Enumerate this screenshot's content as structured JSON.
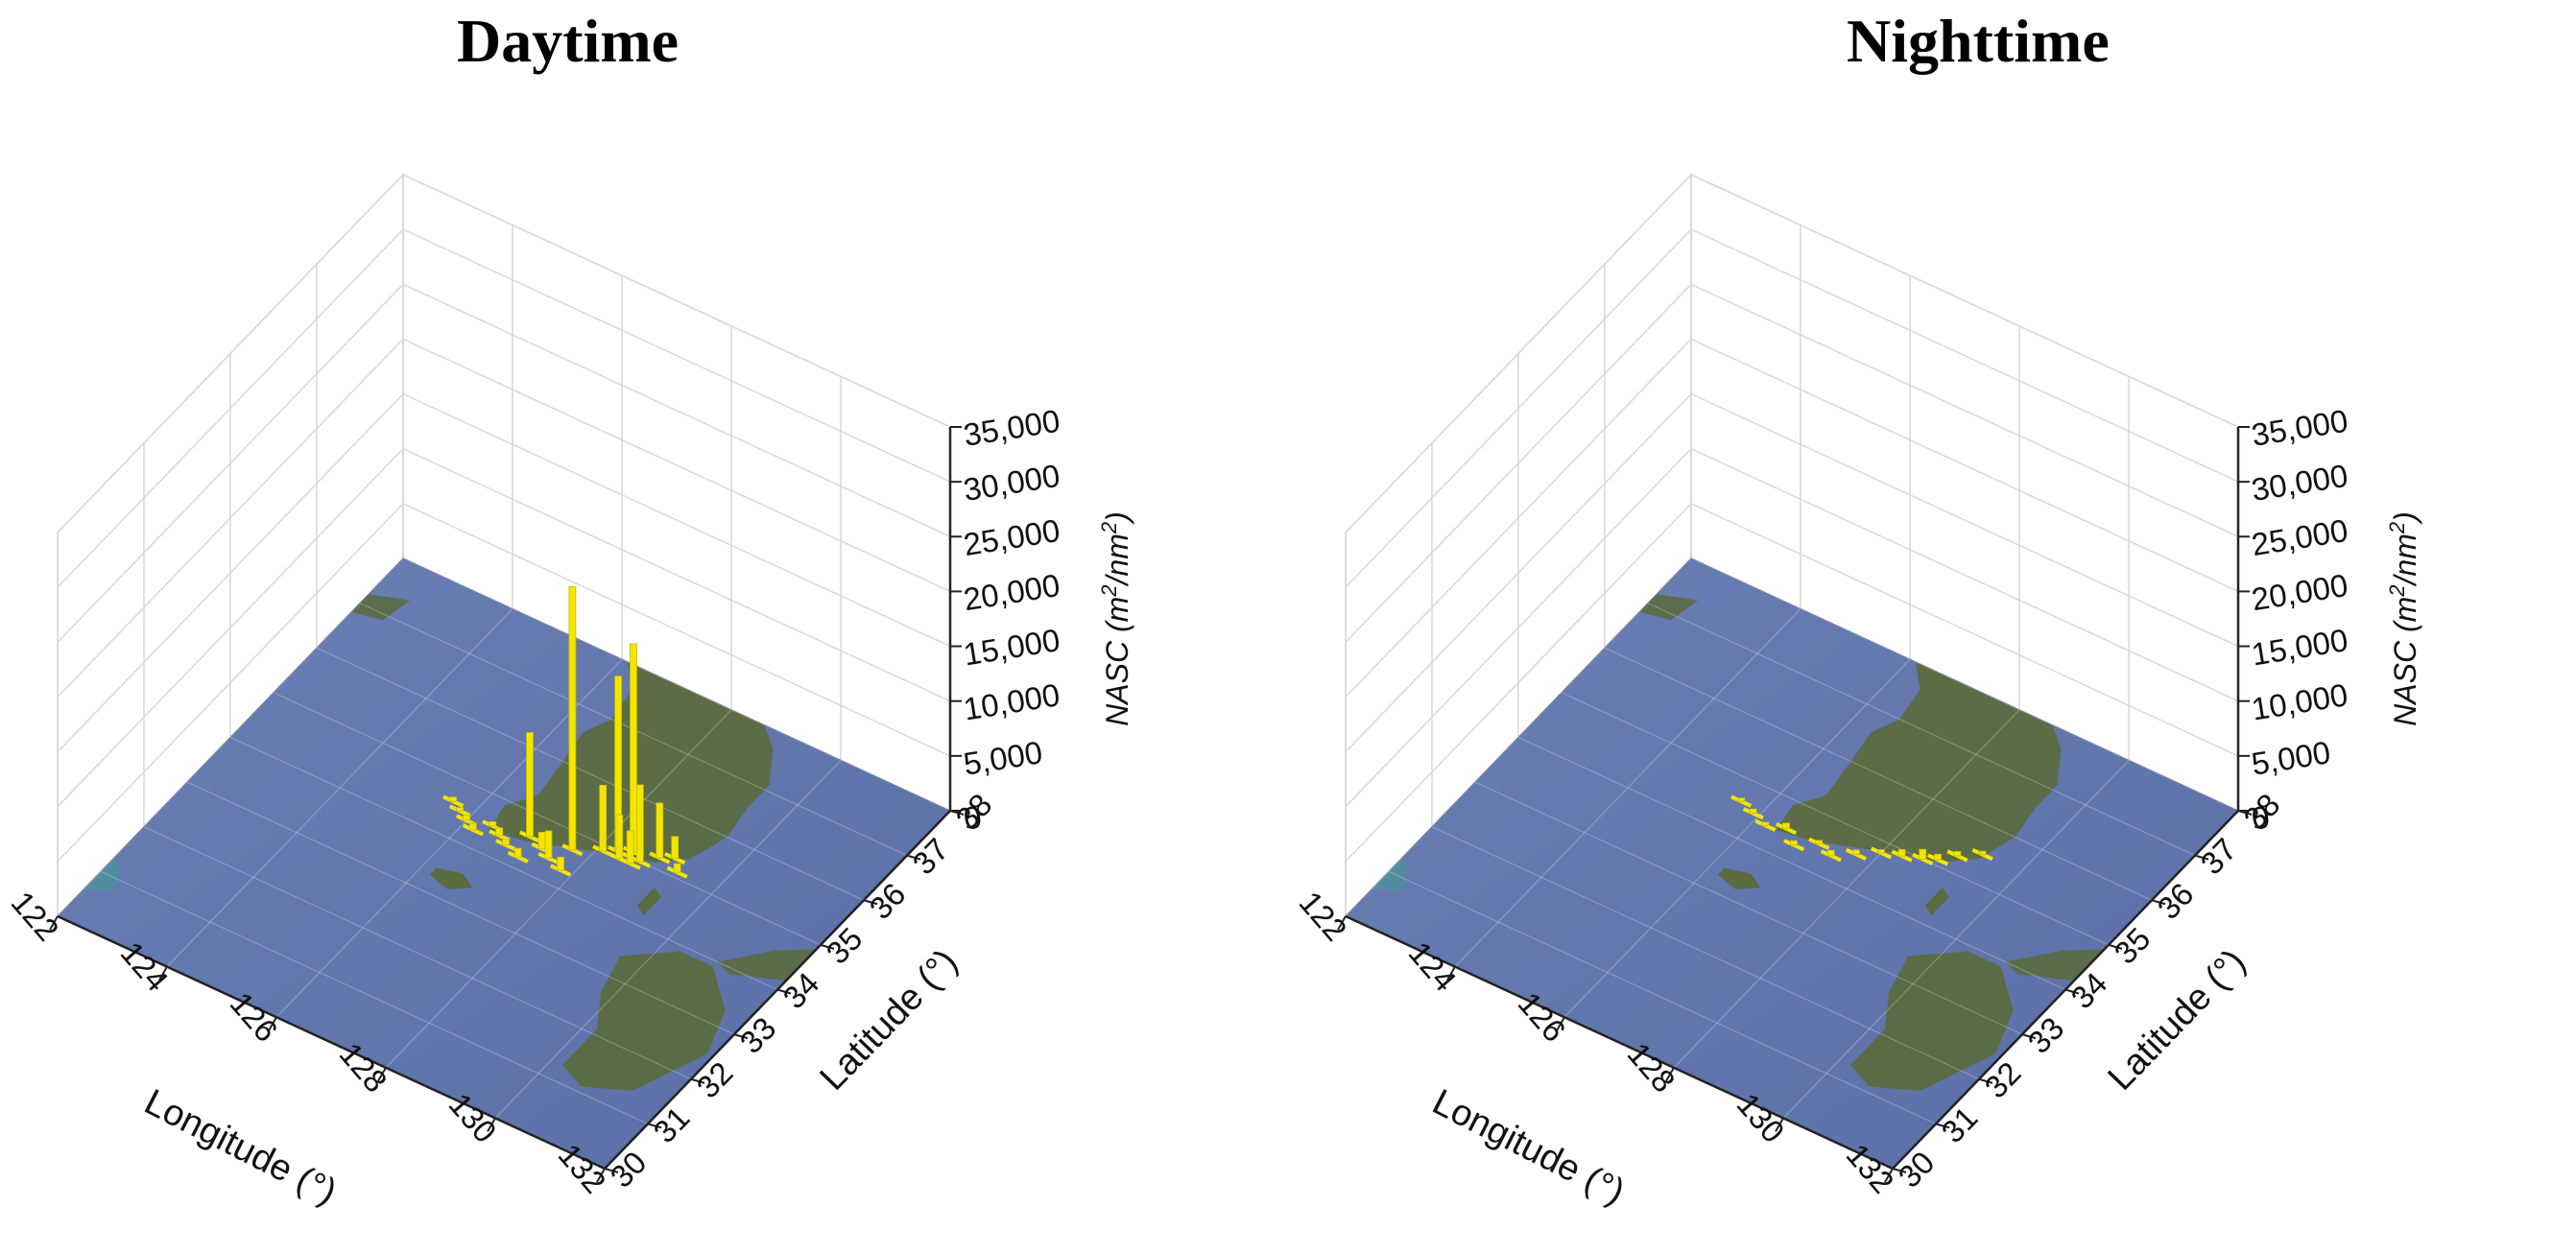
{
  "figure": {
    "titles": [
      "Daytime",
      "Nighttime"
    ]
  },
  "colors": {
    "bar": "#f2e600",
    "sea": "#5b6fa6",
    "land": "#5a6b3e",
    "grid": "#d8d8d8",
    "axis": "#222222"
  },
  "chart_data": [
    {
      "type": "bar",
      "title": "Daytime",
      "projection": "3d",
      "xlabel": "Longitude (°)",
      "ylabel": "Latitude (°)",
      "zlabel": "NASC (m²/nm²)",
      "zlabel_parts": {
        "main": "NASC (m",
        "sup1": "2",
        "mid": "/nm",
        "sup2": "2",
        "end": ")"
      },
      "xticks": [
        "122",
        "124",
        "126",
        "128",
        "130",
        "132"
      ],
      "yticks": [
        "30",
        "31",
        "32",
        "33",
        "34",
        "35",
        "36",
        "37",
        "38"
      ],
      "zticks": [
        "0",
        "5,000",
        "10,000",
        "15,000",
        "20,000",
        "25,000",
        "30,000",
        "35,000"
      ],
      "xlim": [
        122,
        132
      ],
      "ylim": [
        30,
        38
      ],
      "zlim": [
        0,
        35000
      ],
      "grid": true,
      "basemap": "satellite map of Korea, Yellow Sea and Kyushu",
      "points": [
        {
          "lon": 125.6,
          "lat": 34.6,
          "nasc": 400
        },
        {
          "lon": 125.8,
          "lat": 34.5,
          "nasc": 300
        },
        {
          "lon": 126.0,
          "lat": 34.4,
          "nasc": 500
        },
        {
          "lon": 126.2,
          "lat": 34.3,
          "nasc": 600
        },
        {
          "lon": 126.4,
          "lat": 34.5,
          "nasc": 400
        },
        {
          "lon": 126.6,
          "lat": 34.4,
          "nasc": 700
        },
        {
          "lon": 126.8,
          "lat": 34.3,
          "nasc": 500
        },
        {
          "lon": 127.0,
          "lat": 34.6,
          "nasc": 9500
        },
        {
          "lon": 127.1,
          "lat": 34.2,
          "nasc": 800
        },
        {
          "lon": 127.3,
          "lat": 34.5,
          "nasc": 1500
        },
        {
          "lon": 127.5,
          "lat": 34.4,
          "nasc": 2500
        },
        {
          "lon": 127.7,
          "lat": 34.7,
          "nasc": 24000
        },
        {
          "lon": 127.8,
          "lat": 34.3,
          "nasc": 1200
        },
        {
          "lon": 128.1,
          "lat": 34.9,
          "nasc": 6000
        },
        {
          "lon": 128.3,
          "lat": 35.0,
          "nasc": 16000
        },
        {
          "lon": 128.4,
          "lat": 34.9,
          "nasc": 4000
        },
        {
          "lon": 128.5,
          "lat": 35.1,
          "nasc": 19000
        },
        {
          "lon": 128.6,
          "lat": 34.9,
          "nasc": 3000
        },
        {
          "lon": 128.7,
          "lat": 35.0,
          "nasc": 7000
        },
        {
          "lon": 128.9,
          "lat": 35.2,
          "nasc": 5000
        },
        {
          "lon": 129.1,
          "lat": 35.3,
          "nasc": 2000
        },
        {
          "lon": 129.3,
          "lat": 35.1,
          "nasc": 800
        }
      ]
    },
    {
      "type": "bar",
      "title": "Nighttime",
      "projection": "3d",
      "xlabel": "Longitude (°)",
      "ylabel": "Latitude (°)",
      "zlabel": "NASC (m²/nm²)",
      "zlabel_parts": {
        "main": "NASC (m",
        "sup1": "2",
        "mid": "/nm",
        "sup2": "2",
        "end": ")"
      },
      "xticks": [
        "122",
        "124",
        "126",
        "128",
        "130",
        "132"
      ],
      "yticks": [
        "30",
        "31",
        "32",
        "33",
        "34",
        "35",
        "36",
        "37",
        "38"
      ],
      "zticks": [
        "0",
        "5,000",
        "10,000",
        "15,000",
        "20,000",
        "25,000",
        "30,000",
        "35,000"
      ],
      "xlim": [
        122,
        132
      ],
      "ylim": [
        30,
        38
      ],
      "zlim": [
        0,
        35000
      ],
      "grid": true,
      "basemap": "satellite map of Korea, Yellow Sea and Kyushu",
      "points": [
        {
          "lon": 125.6,
          "lat": 34.6,
          "nasc": 300
        },
        {
          "lon": 125.9,
          "lat": 34.5,
          "nasc": 400
        },
        {
          "lon": 126.2,
          "lat": 34.4,
          "nasc": 300
        },
        {
          "lon": 126.5,
          "lat": 34.5,
          "nasc": 500
        },
        {
          "lon": 126.8,
          "lat": 34.3,
          "nasc": 400
        },
        {
          "lon": 127.1,
          "lat": 34.5,
          "nasc": 300
        },
        {
          "lon": 127.4,
          "lat": 34.4,
          "nasc": 500
        },
        {
          "lon": 127.7,
          "lat": 34.6,
          "nasc": 400
        },
        {
          "lon": 128.0,
          "lat": 34.8,
          "nasc": 300
        },
        {
          "lon": 128.3,
          "lat": 34.9,
          "nasc": 600
        },
        {
          "lon": 128.6,
          "lat": 35.0,
          "nasc": 900
        },
        {
          "lon": 128.8,
          "lat": 35.1,
          "nasc": 500
        },
        {
          "lon": 129.0,
          "lat": 35.3,
          "nasc": 400
        },
        {
          "lon": 129.3,
          "lat": 35.5,
          "nasc": 300
        }
      ]
    }
  ]
}
